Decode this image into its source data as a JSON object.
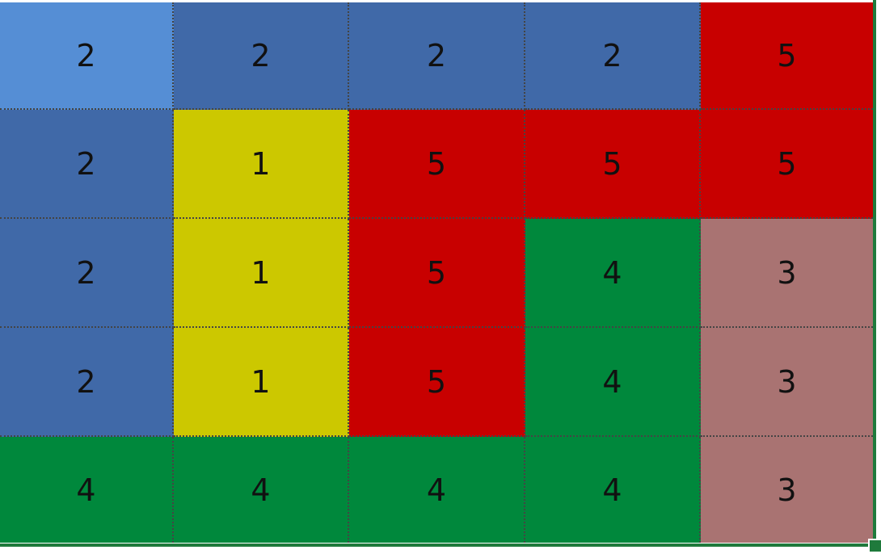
{
  "colors": {
    "1": "#CCC800",
    "2": "#4069A8",
    "3": "#A97372",
    "4": "#00883C",
    "5": "#C80000",
    "active": "#558ED5",
    "selection": "#1F7A3C"
  },
  "grid": [
    [
      "2",
      "2",
      "2",
      "2",
      "5"
    ],
    [
      "2",
      "1",
      "5",
      "5",
      "5"
    ],
    [
      "2",
      "1",
      "5",
      "4",
      "3"
    ],
    [
      "2",
      "1",
      "5",
      "4",
      "3"
    ],
    [
      "4",
      "4",
      "4",
      "4",
      "3"
    ]
  ]
}
